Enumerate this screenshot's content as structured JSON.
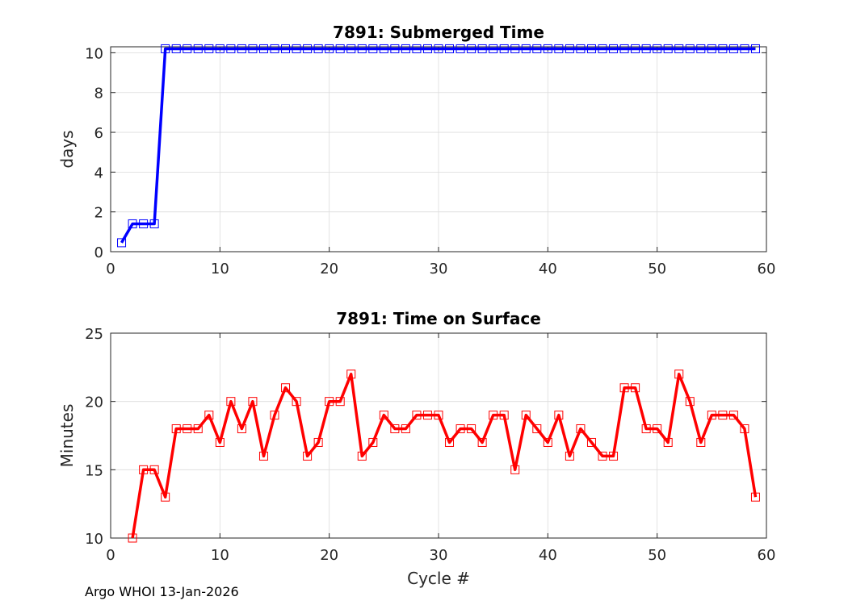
{
  "chart_data": [
    {
      "type": "line",
      "title": "7891: Submerged Time",
      "xlabel": "",
      "ylabel": "days",
      "xlim": [
        0,
        60
      ],
      "ylim": [
        0,
        10.3
      ],
      "xticks": [
        0,
        10,
        20,
        30,
        40,
        50,
        60
      ],
      "yticks": [
        0,
        2,
        4,
        6,
        8,
        10
      ],
      "grid": true,
      "color": "#0000ff",
      "marker": "square",
      "x": [
        1,
        2,
        3,
        4,
        5,
        6,
        7,
        8,
        9,
        10,
        11,
        12,
        13,
        14,
        15,
        16,
        17,
        18,
        19,
        20,
        21,
        22,
        23,
        24,
        25,
        26,
        27,
        28,
        29,
        30,
        31,
        32,
        33,
        34,
        35,
        36,
        37,
        38,
        39,
        40,
        41,
        42,
        43,
        44,
        45,
        46,
        47,
        48,
        49,
        50,
        51,
        52,
        53,
        54,
        55,
        56,
        57,
        58,
        59
      ],
      "values": [
        0.45,
        1.4,
        1.4,
        1.4,
        10.2,
        10.2,
        10.2,
        10.2,
        10.2,
        10.2,
        10.2,
        10.2,
        10.2,
        10.2,
        10.2,
        10.2,
        10.2,
        10.2,
        10.2,
        10.2,
        10.2,
        10.2,
        10.2,
        10.2,
        10.2,
        10.2,
        10.2,
        10.2,
        10.2,
        10.2,
        10.2,
        10.2,
        10.2,
        10.2,
        10.2,
        10.2,
        10.2,
        10.2,
        10.2,
        10.2,
        10.2,
        10.2,
        10.2,
        10.2,
        10.2,
        10.2,
        10.2,
        10.2,
        10.2,
        10.2,
        10.2,
        10.2,
        10.2,
        10.2,
        10.2,
        10.2,
        10.2,
        10.2,
        10.2
      ]
    },
    {
      "type": "line",
      "title": "7891: Time on Surface",
      "xlabel": "Cycle #",
      "ylabel": "Minutes",
      "xlim": [
        0,
        60
      ],
      "ylim": [
        10,
        25
      ],
      "xticks": [
        0,
        10,
        20,
        30,
        40,
        50,
        60
      ],
      "yticks": [
        10,
        15,
        20,
        25
      ],
      "grid": true,
      "color": "#ff0000",
      "marker": "square",
      "x": [
        2,
        3,
        4,
        5,
        6,
        7,
        8,
        9,
        10,
        11,
        12,
        13,
        14,
        15,
        16,
        17,
        18,
        19,
        20,
        21,
        22,
        23,
        24,
        25,
        26,
        27,
        28,
        29,
        30,
        31,
        32,
        33,
        34,
        35,
        36,
        37,
        38,
        39,
        40,
        41,
        42,
        43,
        44,
        45,
        46,
        47,
        48,
        49,
        50,
        51,
        52,
        53,
        54,
        55,
        56,
        57,
        58,
        59
      ],
      "values": [
        10,
        15,
        15,
        13,
        18,
        18,
        18,
        19,
        17,
        20,
        18,
        20,
        16,
        19,
        21,
        20,
        16,
        17,
        20,
        20,
        22,
        16,
        17,
        19,
        18,
        18,
        19,
        19,
        19,
        17,
        18,
        18,
        17,
        19,
        19,
        15,
        19,
        18,
        17,
        19,
        16,
        18,
        17,
        16,
        16,
        21,
        21,
        18,
        18,
        17,
        22,
        20,
        17,
        19,
        19,
        19,
        18,
        13
      ]
    }
  ],
  "footer": {
    "text": "Argo WHOI 13-Jan-2026"
  }
}
